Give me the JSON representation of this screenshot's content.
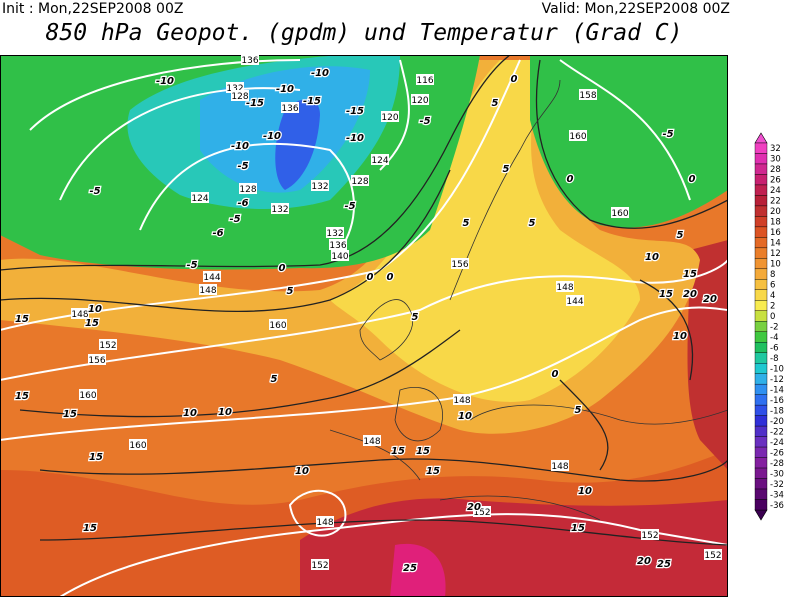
{
  "header": {
    "init": "Init : Mon,22SEP2008 00Z",
    "valid": "Valid: Mon,22SEP2008 00Z",
    "title": "850 hPa Geopot. (gpdm) und Temperatur (Grad C)"
  },
  "colorbar": {
    "ticks": [
      32,
      30,
      28,
      26,
      24,
      22,
      20,
      18,
      16,
      14,
      12,
      10,
      8,
      6,
      4,
      2,
      0,
      -2,
      -4,
      -6,
      -8,
      -10,
      -12,
      -14,
      -16,
      -18,
      -20,
      -22,
      -24,
      -26,
      -28,
      -30,
      -32,
      -34,
      -36
    ],
    "colors": [
      "#f040c0",
      "#e030b0",
      "#d02890",
      "#c82070",
      "#c02050",
      "#b82038",
      "#c03030",
      "#d04028",
      "#dc5424",
      "#e46a26",
      "#ea7e2a",
      "#f09432",
      "#f4aa3a",
      "#f6c040",
      "#f8d848",
      "#f8ec50",
      "#c8e040",
      "#78d040",
      "#40c840",
      "#20c060",
      "#20c8a0",
      "#20c8d0",
      "#30b0e8",
      "#3090f0",
      "#3070f0",
      "#3050e8",
      "#3030d8",
      "#5030c8",
      "#6a30c0",
      "#7a28b0",
      "#8420a0",
      "#7a1890",
      "#6a1080",
      "#5a0870",
      "#4a0060"
    ]
  },
  "geopotential_labels": [
    136,
    132,
    128,
    136,
    124,
    116,
    120,
    120,
    132,
    128,
    128,
    124,
    132,
    132,
    136,
    140,
    144,
    148,
    156,
    158,
    160,
    160,
    148,
    144,
    160,
    148,
    152,
    156,
    160,
    148,
    148,
    160,
    148,
    148,
    152,
    152,
    152,
    152
  ],
  "temperature_labels": [
    -10,
    -10,
    -15,
    -10,
    -15,
    -15,
    -10,
    -5,
    -10,
    -10,
    -5,
    -5,
    -6,
    -5,
    -6,
    -5,
    0,
    -5,
    0,
    -5,
    0,
    0,
    5,
    5,
    5,
    0,
    0,
    10,
    5,
    15,
    15,
    20,
    20,
    10,
    15,
    10,
    15,
    5,
    5,
    0,
    5,
    15,
    15,
    10,
    10,
    15,
    15,
    15,
    10,
    15,
    10,
    10,
    15,
    20,
    15,
    20,
    25,
    25,
    5,
    5
  ]
}
